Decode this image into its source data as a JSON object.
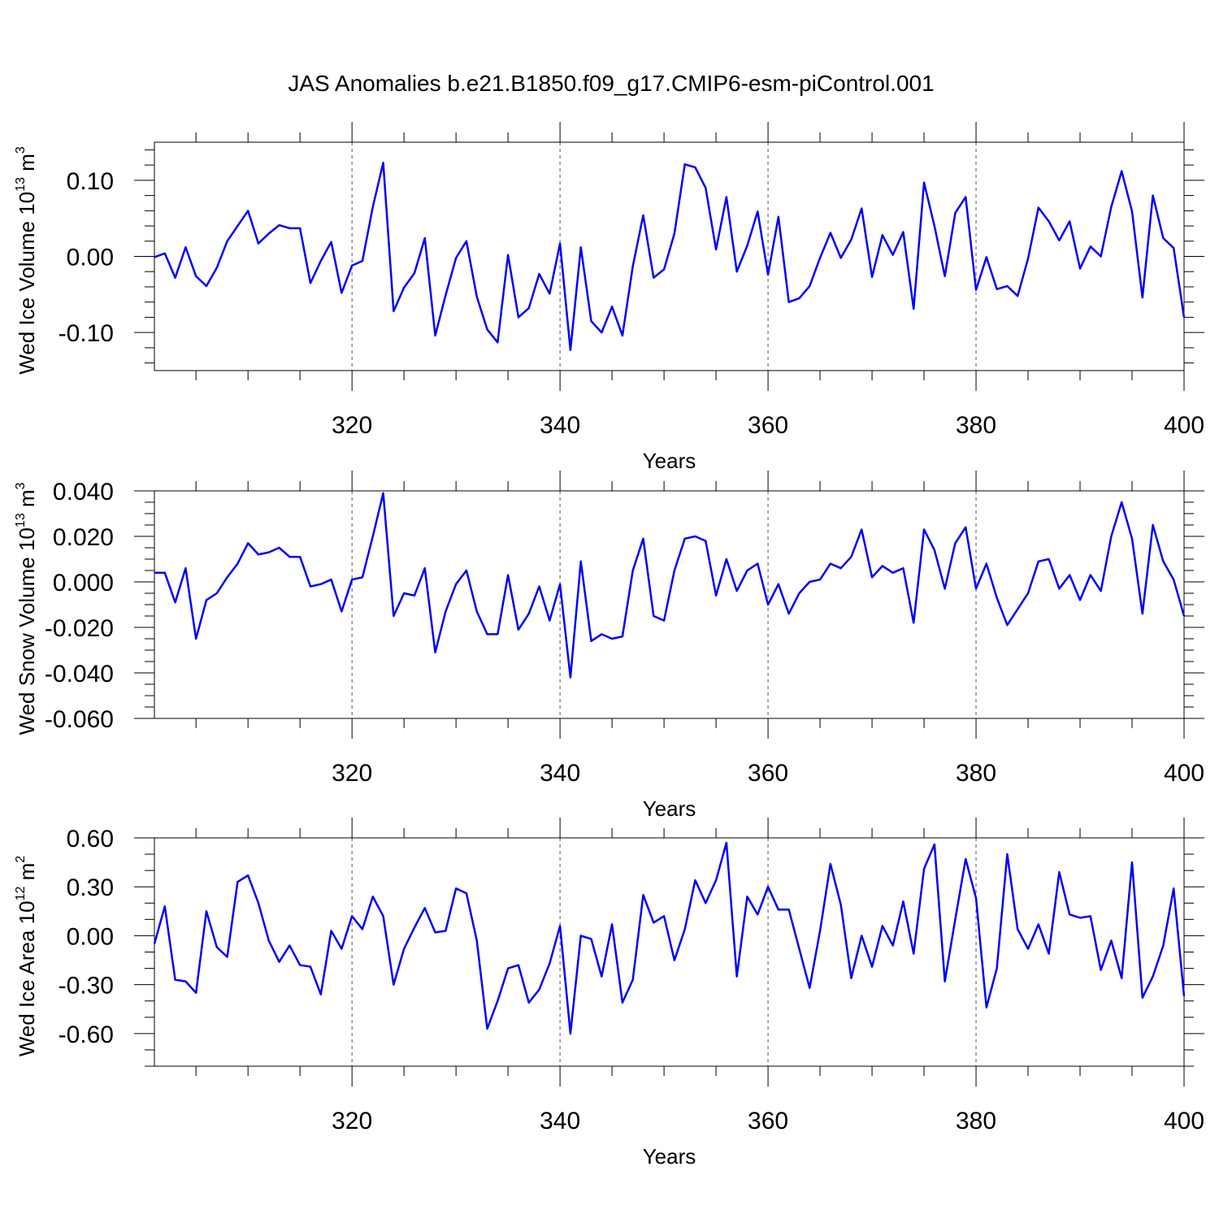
{
  "title": "JAS Anomalies b.e21.B1850.f09_g17.CMIP6-esm-piControl.001",
  "chart_data": [
    {
      "type": "line",
      "ylabel": {
        "text": "Wed Ice Volume 10",
        "sup": "13",
        "unit": " m",
        "unit_sup": "3"
      },
      "xlabel": "Years",
      "color": "#0000ff",
      "grid": true,
      "xlim": [
        301,
        400
      ],
      "xticks": [
        320,
        340,
        360,
        380,
        400
      ],
      "xminorticks": [
        305,
        310,
        315,
        325,
        330,
        335,
        345,
        350,
        355,
        365,
        370,
        375,
        385,
        390,
        395
      ],
      "ylim": [
        -0.15,
        0.15
      ],
      "yticks": [
        {
          "value": -0.1,
          "label": "-0.10"
        },
        {
          "value": 0,
          "label": "0.00"
        },
        {
          "value": 0.1,
          "label": "0.10"
        }
      ],
      "yminorticks": [
        -0.14,
        -0.12,
        -0.08,
        -0.06,
        -0.04,
        -0.02,
        0.02,
        0.04,
        0.06,
        0.08,
        0.12,
        0.14
      ],
      "x": [
        301,
        302,
        303,
        304,
        305,
        306,
        307,
        308,
        309,
        310,
        311,
        312,
        313,
        314,
        315,
        316,
        317,
        318,
        319,
        320,
        321,
        322,
        323,
        324,
        325,
        326,
        327,
        328,
        329,
        330,
        331,
        332,
        333,
        334,
        335,
        336,
        337,
        338,
        339,
        340,
        341,
        342,
        343,
        344,
        345,
        346,
        347,
        348,
        349,
        350,
        351,
        352,
        353,
        354,
        355,
        356,
        357,
        358,
        359,
        360,
        361,
        362,
        363,
        364,
        365,
        366,
        367,
        368,
        369,
        370,
        371,
        372,
        373,
        374,
        375,
        376,
        377,
        378,
        379,
        380,
        381,
        382,
        383,
        384,
        385,
        386,
        387,
        388,
        389,
        390,
        391,
        392,
        393,
        394,
        395,
        396,
        397,
        398,
        399,
        400
      ],
      "values": [
        -0.001,
        0.004,
        -0.028,
        0.012,
        -0.026,
        -0.039,
        -0.015,
        0.02,
        0.04,
        0.06,
        0.017,
        0.03,
        0.041,
        0.037,
        0.037,
        -0.035,
        -0.006,
        0.019,
        -0.048,
        -0.012,
        -0.006,
        0.065,
        0.123,
        -0.072,
        -0.041,
        -0.022,
        0.024,
        -0.104,
        -0.051,
        -0.002,
        0.02,
        -0.053,
        -0.096,
        -0.113,
        0.002,
        -0.08,
        -0.068,
        -0.023,
        -0.049,
        0.017,
        -0.123,
        0.012,
        -0.085,
        -0.1,
        -0.066,
        -0.104,
        -0.013,
        0.054,
        -0.028,
        -0.017,
        0.03,
        0.121,
        0.117,
        0.09,
        0.009,
        0.078,
        -0.02,
        0.014,
        0.059,
        -0.024,
        0.052,
        -0.06,
        -0.055,
        -0.039,
        -0.002,
        0.031,
        -0.002,
        0.022,
        0.063,
        -0.027,
        0.028,
        0.002,
        0.032,
        -0.069,
        0.097,
        0.04,
        -0.026,
        0.057,
        0.078,
        -0.044,
        -0.001,
        -0.043,
        -0.039,
        -0.052,
        -0.003,
        0.064,
        0.046,
        0.021,
        0.046,
        -0.016,
        0.013,
        0.0,
        0.065,
        0.112,
        0.059,
        -0.054,
        0.08,
        0.024,
        0.011,
        -0.08
      ]
    },
    {
      "type": "line",
      "ylabel": {
        "text": "Wed Snow Volume 10",
        "sup": "13",
        "unit": " m",
        "unit_sup": "3"
      },
      "xlabel": "Years",
      "color": "#0000ff",
      "grid": true,
      "xlim": [
        301,
        400
      ],
      "xticks": [
        320,
        340,
        360,
        380,
        400
      ],
      "xminorticks": [
        305,
        310,
        315,
        325,
        330,
        335,
        345,
        350,
        355,
        365,
        370,
        375,
        385,
        390,
        395
      ],
      "ylim": [
        -0.06,
        0.04
      ],
      "yticks": [
        {
          "value": -0.06,
          "label": "-0.060"
        },
        {
          "value": -0.04,
          "label": "-0.040"
        },
        {
          "value": -0.02,
          "label": "-0.020"
        },
        {
          "value": 0,
          "label": "0.000"
        },
        {
          "value": 0.02,
          "label": "0.020"
        },
        {
          "value": 0.04,
          "label": "0.040"
        }
      ],
      "yminorticks": [
        -0.055,
        -0.05,
        -0.045,
        -0.035,
        -0.03,
        -0.025,
        -0.015,
        -0.01,
        -0.005,
        0.005,
        0.01,
        0.015,
        0.025,
        0.03,
        0.035
      ],
      "x": [
        301,
        302,
        303,
        304,
        305,
        306,
        307,
        308,
        309,
        310,
        311,
        312,
        313,
        314,
        315,
        316,
        317,
        318,
        319,
        320,
        321,
        322,
        323,
        324,
        325,
        326,
        327,
        328,
        329,
        330,
        331,
        332,
        333,
        334,
        335,
        336,
        337,
        338,
        339,
        340,
        341,
        342,
        343,
        344,
        345,
        346,
        347,
        348,
        349,
        350,
        351,
        352,
        353,
        354,
        355,
        356,
        357,
        358,
        359,
        360,
        361,
        362,
        363,
        364,
        365,
        366,
        367,
        368,
        369,
        370,
        371,
        372,
        373,
        374,
        375,
        376,
        377,
        378,
        379,
        380,
        381,
        382,
        383,
        384,
        385,
        386,
        387,
        388,
        389,
        390,
        391,
        392,
        393,
        394,
        395,
        396,
        397,
        398,
        399,
        400
      ],
      "values": [
        0.004,
        0.004,
        -0.009,
        0.006,
        -0.025,
        -0.008,
        -0.005,
        0.002,
        0.008,
        0.017,
        0.012,
        0.013,
        0.015,
        0.011,
        0.011,
        -0.002,
        -0.001,
        0.001,
        -0.013,
        0.001,
        0.002,
        0.02,
        0.039,
        -0.015,
        -0.005,
        -0.006,
        0.006,
        -0.031,
        -0.013,
        -0.001,
        0.005,
        -0.013,
        -0.023,
        -0.023,
        0.003,
        -0.021,
        -0.014,
        -0.002,
        -0.017,
        -0.001,
        -0.042,
        0.009,
        -0.026,
        -0.023,
        -0.025,
        -0.024,
        0.005,
        0.019,
        -0.015,
        -0.017,
        0.005,
        0.019,
        0.02,
        0.018,
        -0.006,
        0.01,
        -0.004,
        0.005,
        0.008,
        -0.01,
        -0.001,
        -0.014,
        -0.005,
        0.0,
        0.001,
        0.008,
        0.006,
        0.011,
        0.023,
        0.002,
        0.007,
        0.004,
        0.006,
        -0.018,
        0.023,
        0.014,
        -0.003,
        0.017,
        0.024,
        -0.003,
        0.008,
        -0.007,
        -0.019,
        -0.012,
        -0.005,
        0.009,
        0.01,
        -0.003,
        0.003,
        -0.008,
        0.003,
        -0.004,
        0.02,
        0.035,
        0.019,
        -0.014,
        0.025,
        0.009,
        0.001,
        -0.015
      ]
    },
    {
      "type": "line",
      "ylabel": {
        "text": "Wed Ice Area 10",
        "sup": "12",
        "unit": " m",
        "unit_sup": "2"
      },
      "xlabel": "Years",
      "color": "#0000ff",
      "grid": true,
      "xlim": [
        301,
        400
      ],
      "xticks": [
        320,
        340,
        360,
        380,
        400
      ],
      "xminorticks": [
        305,
        310,
        315,
        325,
        330,
        335,
        345,
        350,
        355,
        365,
        370,
        375,
        385,
        390,
        395
      ],
      "ylim": [
        -0.8,
        0.6
      ],
      "yticks": [
        {
          "value": -0.6,
          "label": "-0.60"
        },
        {
          "value": -0.3,
          "label": "-0.30"
        },
        {
          "value": 0,
          "label": "0.00"
        },
        {
          "value": 0.3,
          "label": "0.30"
        },
        {
          "value": 0.6,
          "label": "0.60"
        }
      ],
      "yminorticks": [
        -0.8,
        -0.7,
        -0.5,
        -0.4,
        -0.2,
        -0.1,
        0.1,
        0.2,
        0.4,
        0.5
      ],
      "x": [
        301,
        302,
        303,
        304,
        305,
        306,
        307,
        308,
        309,
        310,
        311,
        312,
        313,
        314,
        315,
        316,
        317,
        318,
        319,
        320,
        321,
        322,
        323,
        324,
        325,
        326,
        327,
        328,
        329,
        330,
        331,
        332,
        333,
        334,
        335,
        336,
        337,
        338,
        339,
        340,
        341,
        342,
        343,
        344,
        345,
        346,
        347,
        348,
        349,
        350,
        351,
        352,
        353,
        354,
        355,
        356,
        357,
        358,
        359,
        360,
        361,
        362,
        363,
        364,
        365,
        366,
        367,
        368,
        369,
        370,
        371,
        372,
        373,
        374,
        375,
        376,
        377,
        378,
        379,
        380,
        381,
        382,
        383,
        384,
        385,
        386,
        387,
        388,
        389,
        390,
        391,
        392,
        393,
        394,
        395,
        396,
        397,
        398,
        399,
        400
      ],
      "values": [
        -0.05,
        0.18,
        -0.27,
        -0.28,
        -0.35,
        0.15,
        -0.07,
        -0.13,
        0.33,
        0.37,
        0.2,
        -0.03,
        -0.16,
        -0.06,
        -0.18,
        -0.19,
        -0.36,
        0.03,
        -0.08,
        0.12,
        0.04,
        0.24,
        0.12,
        -0.3,
        -0.08,
        0.05,
        0.17,
        0.02,
        0.03,
        0.29,
        0.26,
        -0.03,
        -0.57,
        -0.4,
        -0.2,
        -0.18,
        -0.41,
        -0.33,
        -0.17,
        0.06,
        -0.6,
        0.0,
        -0.02,
        -0.25,
        0.07,
        -0.41,
        -0.27,
        0.25,
        0.08,
        0.12,
        -0.15,
        0.04,
        0.34,
        0.2,
        0.34,
        0.57,
        -0.25,
        0.24,
        0.13,
        0.3,
        0.16,
        0.16,
        -0.08,
        -0.32,
        0.03,
        0.44,
        0.19,
        -0.26,
        0.0,
        -0.19,
        0.06,
        -0.06,
        0.21,
        -0.11,
        0.41,
        0.56,
        -0.28,
        0.1,
        0.47,
        0.23,
        -0.44,
        -0.2,
        0.5,
        0.04,
        -0.08,
        0.07,
        -0.11,
        0.39,
        0.13,
        0.11,
        0.12,
        -0.21,
        -0.03,
        -0.26,
        0.45,
        -0.38,
        -0.25,
        -0.06,
        0.29,
        -0.37
      ]
    }
  ]
}
